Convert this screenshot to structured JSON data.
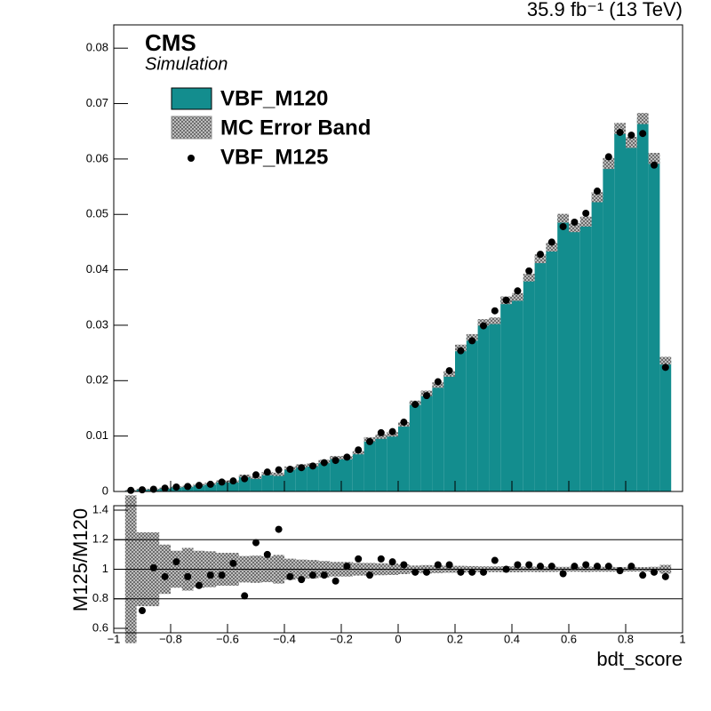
{
  "chart_data": [
    {
      "type": "histogram",
      "lumi": "35.9 fb⁻¹ (13 TeV)",
      "label": "CMS",
      "sublabel": "Simulation",
      "bins": [
        -0.96,
        -0.92,
        -0.88,
        -0.84,
        -0.8,
        -0.76,
        -0.72,
        -0.68,
        -0.64,
        -0.6,
        -0.56,
        -0.52,
        -0.48,
        -0.44,
        -0.4,
        -0.36,
        -0.32,
        -0.28,
        -0.24,
        -0.2,
        -0.16,
        -0.12,
        -0.08,
        -0.04,
        0,
        0.04,
        0.08,
        0.12,
        0.16,
        0.2,
        0.24,
        0.28,
        0.32,
        0.36,
        0.4,
        0.44,
        0.48,
        0.52,
        0.56,
        0.6,
        0.64,
        0.68,
        0.72,
        0.76,
        0.8,
        0.84,
        0.88,
        0.92,
        0.96
      ],
      "series": [
        {
          "name": "VBF_M120",
          "color": "#138d8e",
          "values": [
            0.0002,
            0.0004,
            0.0004,
            0.0006,
            0.0008,
            0.0009,
            0.0012,
            0.0014,
            0.0018,
            0.0018,
            0.0028,
            0.0025,
            0.0032,
            0.0031,
            0.0042,
            0.0046,
            0.0048,
            0.0054,
            0.0061,
            0.0061,
            0.007,
            0.0094,
            0.0099,
            0.0103,
            0.0121,
            0.016,
            0.0177,
            0.0192,
            0.0212,
            0.0259,
            0.0278,
            0.0305,
            0.0308,
            0.0345,
            0.0351,
            0.0386,
            0.042,
            0.0441,
            0.0493,
            0.0476,
            0.0487,
            0.0531,
            0.0592,
            0.0655,
            0.063,
            0.0673,
            0.0601,
            0.0236
          ],
          "errors": [
            0.0001,
            0.0001,
            0.0001,
            0.0001,
            0.0001,
            0.00013,
            0.00015,
            0.00017,
            0.0002,
            0.0002,
            0.00025,
            0.00023,
            0.00028,
            0.0003,
            0.0003,
            0.0003,
            0.0003,
            0.0003,
            0.0003,
            0.0003,
            0.0003,
            0.0004,
            0.0004,
            0.0004,
            0.0004,
            0.0004,
            0.0005,
            0.0005,
            0.0005,
            0.0006,
            0.0006,
            0.0006,
            0.0006,
            0.0007,
            0.0007,
            0.0007,
            0.0008,
            0.0008,
            0.0008,
            0.0008,
            0.0009,
            0.0009,
            0.001,
            0.001,
            0.001,
            0.001,
            0.001,
            0.0007
          ]
        },
        {
          "name": "VBF_M125",
          "color": "#000000",
          "values": [
            0.0002,
            0.0003,
            0.0004,
            0.0006,
            0.0008,
            0.0009,
            0.0011,
            0.0013,
            0.0017,
            0.0019,
            0.0023,
            0.003,
            0.0035,
            0.0039,
            0.004,
            0.0043,
            0.0046,
            0.0052,
            0.0056,
            0.0062,
            0.0075,
            0.009,
            0.0106,
            0.0108,
            0.0125,
            0.0157,
            0.0173,
            0.0198,
            0.0218,
            0.0254,
            0.0272,
            0.0299,
            0.0326,
            0.0345,
            0.0362,
            0.0398,
            0.0428,
            0.045,
            0.0478,
            0.0486,
            0.0502,
            0.0542,
            0.0604,
            0.0648,
            0.0643,
            0.0646,
            0.0589,
            0.0224
          ]
        }
      ],
      "error_band": {
        "name": "MC Error Band",
        "color": "#8c8c8c"
      },
      "xlim": [
        -1,
        1
      ],
      "ylim": [
        0,
        0.0842
      ],
      "yticks": [
        0,
        0.01,
        0.02,
        0.03,
        0.04,
        0.05,
        0.06,
        0.07,
        0.08
      ]
    },
    {
      "type": "ratio",
      "ylabel": "M125/M120",
      "xlabel": "bdt_score",
      "color": "#000000",
      "x": [
        -0.94,
        -0.9,
        -0.86,
        -0.82,
        -0.78,
        -0.74,
        -0.7,
        -0.66,
        -0.62,
        -0.58,
        -0.54,
        -0.5,
        -0.46,
        -0.42,
        -0.38,
        -0.34,
        -0.3,
        -0.26,
        -0.22,
        -0.18,
        -0.14,
        -0.1,
        -0.06,
        -0.02,
        0.02,
        0.06,
        0.1,
        0.14,
        0.18,
        0.22,
        0.26,
        0.3,
        0.34,
        0.38,
        0.42,
        0.46,
        0.5,
        0.54,
        0.58,
        0.62,
        0.66,
        0.7,
        0.74,
        0.78,
        0.82,
        0.86,
        0.9,
        0.94
      ],
      "values": [
        null,
        0.72,
        1.01,
        0.95,
        1.05,
        0.95,
        0.89,
        0.96,
        0.96,
        1.04,
        0.82,
        1.18,
        1.1,
        1.27,
        0.95,
        0.93,
        0.96,
        0.96,
        0.92,
        1.02,
        1.07,
        0.96,
        1.07,
        1.05,
        1.03,
        0.98,
        0.98,
        1.03,
        1.03,
        0.98,
        0.98,
        0.98,
        1.06,
        1.0,
        1.03,
        1.03,
        1.02,
        1.02,
        0.97,
        1.02,
        1.03,
        1.02,
        1.02,
        0.99,
        1.02,
        0.96,
        0.98,
        0.95
      ],
      "xlim": [
        -1,
        1
      ],
      "xticks": [
        {
          "value": -1,
          "label": "−1"
        },
        {
          "value": -0.8,
          "label": "−0.8"
        },
        {
          "value": -0.6,
          "label": "−0.6"
        },
        {
          "value": -0.4,
          "label": "−0.4"
        },
        {
          "value": -0.2,
          "label": "−0.2"
        },
        0,
        0.2,
        0.4,
        0.6,
        0.8,
        1
      ],
      "ylim": [
        0.57,
        1.43
      ],
      "yticks": [
        0.6,
        0.8,
        1,
        1.2,
        1.4
      ],
      "grid": true
    }
  ]
}
